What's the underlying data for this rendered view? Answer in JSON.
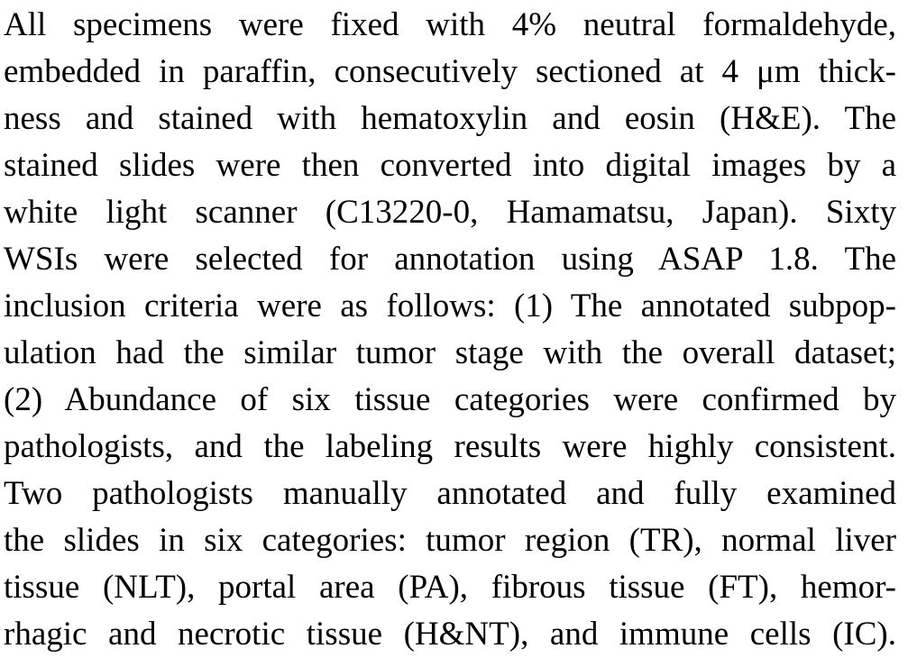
{
  "paragraph": {
    "lines": [
      "All specimens were fixed with 4% neutral formaldehyde,",
      "embedded in paraffin, consecutively sectioned at 4 μm thick-",
      "ness and stained with hematoxylin and eosin (H&E). The",
      "stained slides were then converted into digital images by a",
      "white light scanner (C13220-0, Hamamatsu, Japan). Sixty",
      "WSIs were selected for annotation using ASAP 1.8. The",
      "inclusion criteria were as follows: (1) The annotated subpop-",
      "ulation had the similar tumor stage with the overall dataset;",
      "(2) Abundance of six tissue categories were confirmed by",
      "pathologists, and the labeling results were highly consistent.",
      "Two pathologists manually annotated and fully examined",
      "the slides in six categories: tumor region (TR), normal liver",
      "tissue (NLT), portal area (PA), fibrous tissue (FT), hemor-",
      "rhagic and necrotic tissue (H&NT), and immune cells (IC)."
    ]
  }
}
